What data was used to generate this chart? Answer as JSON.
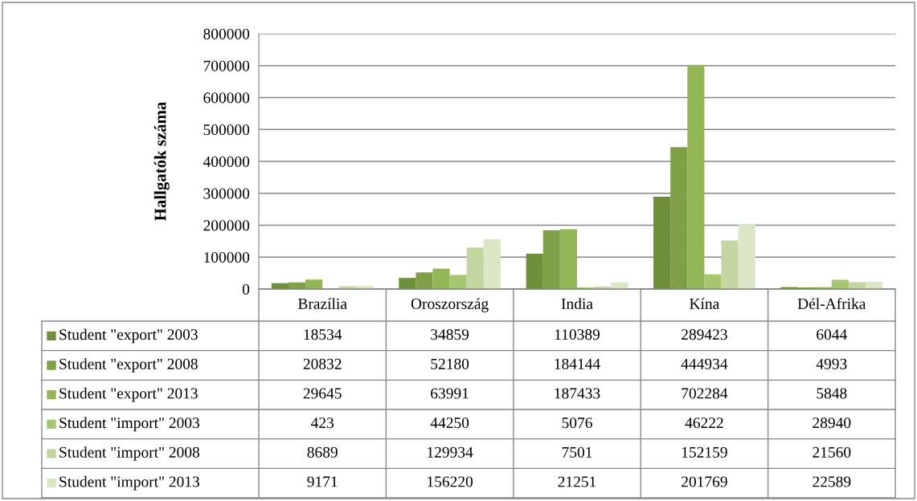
{
  "chart_data": {
    "type": "bar",
    "ylabel": "Hallgatók száma",
    "categories": [
      "Brazília",
      "Oroszország",
      "India",
      "Kína",
      "Dél-Afrika"
    ],
    "series": [
      {
        "name": "Student \"export\" 2003",
        "color": "#6f8f3a",
        "values": [
          18534,
          34859,
          110389,
          289423,
          6044
        ]
      },
      {
        "name": "Student \"export\" 2008",
        "color": "#7fa046",
        "values": [
          20832,
          52180,
          184144,
          444934,
          4993
        ]
      },
      {
        "name": "Student \"export\" 2013",
        "color": "#93b656",
        "values": [
          29645,
          63991,
          187433,
          702284,
          5848
        ]
      },
      {
        "name": "Student \"import\" 2003",
        "color": "#a6c66f",
        "values": [
          423,
          44250,
          5076,
          46222,
          28940
        ]
      },
      {
        "name": "Student \"import\" 2008",
        "color": "#c3d6a2",
        "values": [
          8689,
          129934,
          7501,
          152159,
          21560
        ]
      },
      {
        "name": "Student \"import\" 2013",
        "color": "#dbe6c6",
        "values": [
          9171,
          156220,
          21251,
          201769,
          22589
        ]
      }
    ],
    "ylim": [
      0,
      800000
    ],
    "yticks": [
      0,
      100000,
      200000,
      300000,
      400000,
      500000,
      600000,
      700000,
      800000
    ],
    "grid": "y",
    "legend": "bottom left",
    "data_labels": true
  }
}
